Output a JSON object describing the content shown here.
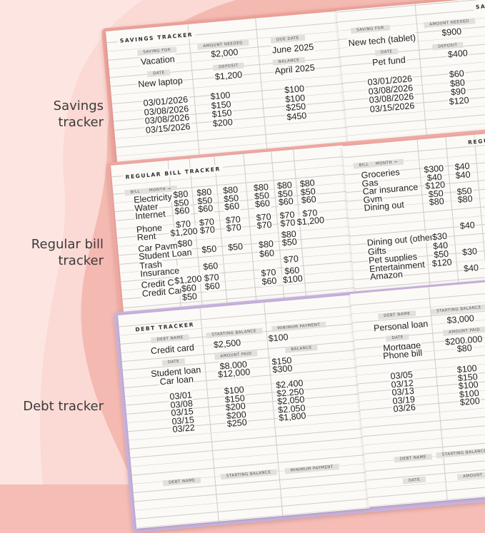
{
  "side_labels": [
    "Savings tracker",
    "Regular bill tracker",
    "Debt tracker"
  ],
  "savings_left": {
    "title": "SAVINGS TRACKER",
    "labels": {
      "saving_for": "SAVING FOR",
      "amount_needed": "AMOUNT NEEDED",
      "due_date": "DUE DATE",
      "date": "DATE",
      "deposit": "DEPOSIT",
      "balance": "BALANCE"
    },
    "goal": {
      "saving_for": "Vacation",
      "amount_needed": "$2,000",
      "due_date": "June 2025"
    },
    "first_entry": {
      "item": "New laptop",
      "deposit": "$1,200",
      "balance": "April 2025"
    },
    "rows": [
      {
        "date": "03/01/2026",
        "deposit": "$100",
        "balance": "$100"
      },
      {
        "date": "03/08/2026",
        "deposit": "$150",
        "balance": "$100"
      },
      {
        "date": "03/08/2026",
        "deposit": "$150",
        "balance": "$250"
      },
      {
        "date": "03/15/2026",
        "deposit": "$200",
        "balance": "$450"
      }
    ]
  },
  "savings_right": {
    "title": "SAVINGS TRACKER",
    "labels": {
      "saving_for": "SAVING FOR",
      "amount_needed": "AMOUNT NEEDED",
      "date": "DATE",
      "deposit": "DEPOSIT"
    },
    "goal": {
      "saving_for": "New tech (tablet)",
      "amount_needed": "$900"
    },
    "second_goal": {
      "item": "Pet fund",
      "deposit": "$400"
    },
    "rows": [
      {
        "date": "03/01/2026",
        "deposit": "$60"
      },
      {
        "date": "03/08/2026",
        "deposit": "$80"
      },
      {
        "date": "03/08/2026",
        "deposit": "$90"
      },
      {
        "date": "03/15/2026",
        "deposit": "$120"
      }
    ]
  },
  "bill_left": {
    "title": "REGULAR BILL TRACKER",
    "bill_label": "BILL",
    "month_label": "MONTH →",
    "rows": [
      {
        "name": "Electricity",
        "amounts": [
          "$80",
          "$80",
          "$80",
          "$80",
          "$80",
          "$80"
        ]
      },
      {
        "name": "Water",
        "amounts": [
          "$50",
          "$50",
          "$50",
          "$50",
          "$50",
          "$50"
        ]
      },
      {
        "name": "Internet",
        "amounts": [
          "$60",
          "$60",
          "$60",
          "$60",
          "$60",
          "$60"
        ]
      },
      {
        "name": "Phone",
        "amounts": [
          "$70",
          "$70",
          "$70",
          "$70",
          "$70",
          "$70"
        ]
      },
      {
        "name": "Rent",
        "amounts": [
          "$1,200",
          "$70",
          "$70",
          "$70",
          "$70",
          "$1,200"
        ]
      },
      {
        "name": "Car Payment",
        "amounts": [
          "$80",
          null,
          null,
          null,
          "$80",
          null
        ]
      },
      {
        "name": "Student Loan",
        "amounts": [
          null,
          "$50",
          "$50",
          "$80",
          "$50",
          null
        ]
      },
      {
        "name": "Trash",
        "amounts": [
          null,
          null,
          null,
          "$60",
          null,
          null
        ]
      },
      {
        "name": "Insurance",
        "amounts": [
          null,
          "$60",
          null,
          null,
          "$70",
          null
        ]
      },
      {
        "name": "Credit Card",
        "amounts": [
          "$1,200",
          "$70",
          null,
          "$70",
          "$60",
          null
        ]
      },
      {
        "name": "Credit Card",
        "amounts": [
          "$60",
          "$60",
          null,
          "$60",
          "$100",
          null
        ]
      },
      {
        "name": null,
        "amounts": [
          "$50",
          null,
          null,
          null,
          null,
          null
        ]
      }
    ]
  },
  "bill_right": {
    "title": "REGULAR BILL TRACKER",
    "bill_label": "BILL",
    "month_label": "MONTH →",
    "rows": [
      {
        "name": "Groceries",
        "amounts": [
          "$300",
          "$40"
        ]
      },
      {
        "name": "Gas",
        "amounts": [
          "$40",
          "$40"
        ]
      },
      {
        "name": "Car insurance",
        "amounts": [
          "$120",
          null
        ]
      },
      {
        "name": "Gym",
        "amounts": [
          "$50",
          "$50"
        ]
      },
      {
        "name": "Dining out",
        "amounts": [
          "$80",
          "$80"
        ]
      },
      {
        "name": null,
        "amounts": [
          null,
          "$40"
        ]
      },
      {
        "name": "Dining out (other)",
        "amounts": [
          "$30",
          null
        ]
      },
      {
        "name": "Gifts",
        "amounts": [
          "$40",
          null
        ]
      },
      {
        "name": "Pet supplies",
        "amounts": [
          "$50",
          "$30"
        ]
      },
      {
        "name": "Entertainment",
        "amounts": [
          "$120",
          null
        ]
      },
      {
        "name": "Amazon",
        "amounts": [
          null,
          "$40"
        ]
      }
    ]
  },
  "debt_left": {
    "title": "DEBT TRACKER",
    "labels": {
      "debt_name": "DEBT NAME",
      "starting_balance": "STARTING BALANCE",
      "minimum_payment": "MINIMUM PAYMENT",
      "date": "DATE",
      "amount_paid": "AMOUNT PAID",
      "balance": "BALANCE"
    },
    "debt": {
      "name": "Credit card",
      "starting_balance": "$2,500",
      "minimum_payment": "$100"
    },
    "entries": [
      {
        "name": "Student loan",
        "amount": "$8,000",
        "balance": "$150"
      },
      {
        "name": "Car loan",
        "amount": "$12,000",
        "balance": "$300"
      }
    ],
    "rows": [
      {
        "date": "03/01",
        "paid": "$100",
        "balance": "$2,400"
      },
      {
        "date": "03/08",
        "paid": "$150",
        "balance": "$2,250"
      },
      {
        "date": "03/15",
        "paid": "$200",
        "balance": "$2,050"
      },
      {
        "date": "03/15",
        "paid": "$200",
        "balance": "$2,050"
      },
      {
        "date": "03/22",
        "paid": "$250",
        "balance": "$1,800"
      }
    ],
    "next_labels": {
      "debt_name": "DEBT NAME",
      "starting_balance": "STARTING BALANCE",
      "minimum_payment": "MINIMUM PAYMENT"
    }
  },
  "debt_right": {
    "labels": {
      "debt_name": "DEBT NAME",
      "starting_balance": "STARTING BALANCE",
      "date": "DATE",
      "amount_paid": "AMOUNT PAID"
    },
    "debt": {
      "name": "Personal loan",
      "starting_balance": "$3,000"
    },
    "entries": [
      {
        "name": "Mortgage",
        "amount": "$200,000"
      },
      {
        "name": "Phone bill",
        "amount": "$80"
      }
    ],
    "rows": [
      {
        "date": "03/05",
        "paid": "$100"
      },
      {
        "date": "03/12",
        "paid": "$150"
      },
      {
        "date": "03/13",
        "paid": "$100"
      },
      {
        "date": "03/19",
        "paid": "$100"
      },
      {
        "date": "03/26",
        "paid": "$200"
      }
    ],
    "next_labels": {
      "debt_name": "DEBT NAME",
      "starting_balance": "STARTING BALANCE",
      "date": "DATE",
      "amount": "AMOUNT"
    }
  }
}
